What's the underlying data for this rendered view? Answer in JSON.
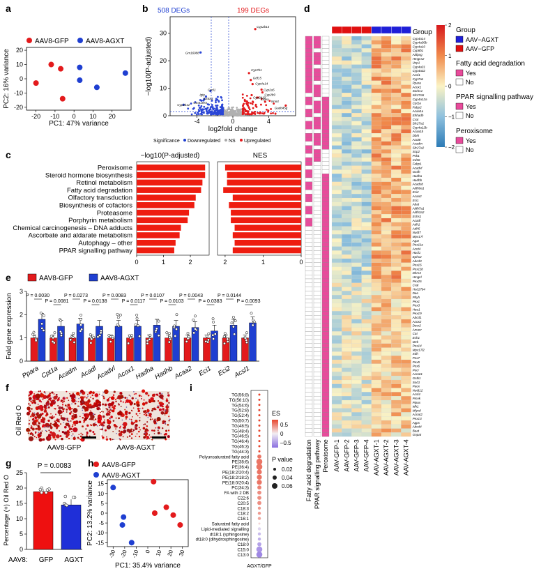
{
  "panels": {
    "a": {
      "letter": "a",
      "legend": [
        "AAV8-GFP",
        "AAV8-AGXT"
      ],
      "colors": {
        "gfp": "#e31a1c",
        "agxt": "#1f3fd1"
      },
      "xlabel": "PC1: 47% variance",
      "ylabel": "PC2: 16% variance",
      "xticks": [
        "-20",
        "-10",
        "0",
        "10",
        "20"
      ],
      "yticks": [
        "20",
        "10",
        "0",
        "-10",
        "-20"
      ],
      "chart_data": {
        "type": "scatter",
        "xlim": [
          -25,
          30
        ],
        "ylim": [
          -22,
          22
        ],
        "series": [
          {
            "name": "AAV8-GFP",
            "points": [
              [
                -12,
                10
              ],
              [
                -20,
                -3
              ],
              [
                -7,
                7
              ],
              [
                -6,
                -14
              ]
            ]
          },
          {
            "name": "AAV8-AGXT",
            "points": [
              [
                3,
                8
              ],
              [
                3,
                -1
              ],
              [
                12,
                -6
              ],
              [
                27,
                4
              ]
            ]
          }
        ]
      }
    },
    "b": {
      "letter": "b",
      "down_count": "508 DEGs",
      "up_count": "199 DEGs",
      "xlabel": "log2fold change",
      "ylabel": "−log10(P-adjusted)",
      "xticks": [
        "-4",
        "0",
        "4"
      ],
      "yticks": [
        "0",
        "10",
        "20",
        "30"
      ],
      "legend_title": "Significance",
      "legend_items": [
        "Downregulated",
        "NS",
        "Upregulated"
      ],
      "genes_up": [
        "Cyp2b13",
        "Cyp7b1",
        "Gdf15",
        "Cyp4a14",
        "Cyp2a5",
        "Cyp2b9",
        "Cyp2b10",
        "Cidea",
        "Nnmt",
        "Gadd45g"
      ],
      "genes_down": [
        "Gm16088",
        "Cxcl1",
        "Igtp",
        "Slc6a3",
        "Gm41972",
        "Cyp2b12"
      ]
    },
    "c": {
      "letter": "c",
      "left_title": "−log10(P-adjusted)",
      "right_title": "NES",
      "left_ticks": [
        "0",
        "1",
        "2"
      ],
      "right_ticks": [
        "2",
        "1",
        "0"
      ],
      "chart_data": {
        "type": "bar",
        "categories": [
          "Peroxisome",
          "Steroid hormone biosynthesis",
          "Retinol metabolism",
          "Fatty acid degradation",
          "Olfactory transduction",
          "Biosynthesis of cofactors",
          "Proteasome",
          "Porphyrin metabolism",
          "Chemical carcinogenesis – DNA adducts",
          "Ascorbate and aldarate metabolism",
          "Autophagy – other",
          "PPAR signalling pathway"
        ],
        "series": [
          {
            "name": "−log10(P-adjusted)",
            "values": [
              2.55,
              2.55,
              2.45,
              2.4,
              2.2,
              2.15,
              1.95,
              1.9,
              1.65,
              1.6,
              1.45,
              1.4
            ]
          },
          {
            "name": "NES",
            "values": [
              2.0,
              1.95,
              1.95,
              2.05,
              1.8,
              1.9,
              1.85,
              1.85,
              1.75,
              1.8,
              1.75,
              1.8
            ]
          }
        ]
      }
    },
    "e": {
      "letter": "e",
      "legend": [
        "AAV8-GFP",
        "AAV8-AGXT"
      ],
      "ylabel": "Fold gene expression",
      "yticks": [
        "0",
        "1",
        "2",
        "3"
      ],
      "chart_data": {
        "type": "bar",
        "categories": [
          "Ppara",
          "Cpt1a",
          "Acadm",
          "Acadl",
          "Acadvl",
          "Acox1",
          "Hadha",
          "Hadhb",
          "Acaa2",
          "Eci1",
          "Eci2",
          "Acsl1"
        ],
        "series": [
          {
            "name": "AAV8-GFP",
            "values": [
              1.0,
              1.0,
              1.0,
              1.0,
              1.0,
              1.0,
              1.0,
              1.0,
              1.0,
              1.0,
              1.0,
              1.0
            ]
          },
          {
            "name": "AAV8-AGXT",
            "values": [
              1.8,
              1.5,
              1.6,
              1.5,
              1.5,
              1.5,
              1.55,
              1.5,
              1.45,
              1.3,
              1.55,
              1.65
            ]
          }
        ],
        "pvalues": [
          "P = 0.0030",
          "P = 0.0081",
          "P = 0.0273",
          "P = 0.0138",
          "P = 0.0083",
          "P = 0.0117",
          "P = 0.0107",
          "P = 0.0103",
          "P = 0.0043",
          "P = 0.0383",
          "P = 0.0144",
          "P = 0.0093"
        ],
        "ylim": [
          0,
          3
        ]
      }
    },
    "f": {
      "letter": "f",
      "stain_label": "Oil Red O",
      "captions": [
        "AAV8-GFP",
        "AAV8-AGXT"
      ]
    },
    "g": {
      "letter": "g",
      "pvalue": "P = 0.0083",
      "ylabel": "Percentage (+) Oil Red O",
      "xprefix": "AAV8:",
      "yticks": [
        "0",
        "5",
        "10",
        "15",
        "20",
        "25"
      ],
      "chart_data": {
        "type": "bar",
        "categories": [
          "GFP",
          "AGXT"
        ],
        "values": [
          18.8,
          14.5
        ],
        "ylim": [
          0,
          25
        ]
      }
    },
    "h": {
      "letter": "h",
      "legend": [
        "AAV8-GFP",
        "AAV8-AGXT"
      ],
      "xlabel": "PC1: 35.4% variance",
      "ylabel": "PC2: 13.2% variance",
      "xticks": [
        "-30",
        "-20",
        "-10",
        "0",
        "10",
        "20",
        "30"
      ],
      "yticks": [
        "15",
        "10",
        "5",
        "0",
        "-5",
        "-10",
        "-15"
      ],
      "chart_data": {
        "type": "scatter",
        "xlim": [
          -35,
          35
        ],
        "ylim": [
          -17,
          17
        ],
        "series": [
          {
            "name": "AAV8-GFP",
            "points": [
              [
                5,
                16
              ],
              [
                6,
                0
              ],
              [
                16,
                3
              ],
              [
                22,
                -1
              ],
              [
                28,
                -6
              ]
            ]
          },
          {
            "name": "AAV8-AGXT",
            "points": [
              [
                -30,
                13
              ],
              [
                -21,
                -2
              ],
              [
                -22,
                -6
              ],
              [
                -14,
                -15
              ]
            ]
          }
        ]
      }
    },
    "i": {
      "letter": "i",
      "xlabel": "AGXT/GFP",
      "es_title": "ES",
      "es_ticks": [
        "0.5",
        "0",
        "–0.5"
      ],
      "p_title": "P value",
      "p_items": [
        "0.02",
        "0.04",
        "0.06"
      ],
      "rows": [
        "TG(56:8)",
        "TG(56:10)",
        "TG(54:6)",
        "TG(52:8)",
        "TG(52:4)",
        "TG(50:7)",
        "TG(48:5)",
        "TG(48:4)",
        "TG(46:5)",
        "TG(46:4)",
        "TG(46:3)",
        "TG(44:3)",
        "Polyunsaturated fatty acid",
        "PE(38:6)",
        "PE(36:4)",
        "PE(18:2/20:4)",
        "PE(18:2/18:2)",
        "PE(18:0/20:4)",
        "PC(34:3)",
        "FA with 2 DB",
        "C22:6",
        "C20:5",
        "C18:3",
        "C18:2",
        "C16:1",
        "Saturated fatty acid",
        "Lipid-mediated signalling",
        "dt18:1 (sphingosine)",
        "dt18:0 (dihydrosphingosine)",
        "C18:0",
        "C15:0",
        "C13:0"
      ],
      "es_values": [
        0.7,
        0.7,
        0.7,
        0.7,
        0.7,
        0.7,
        0.7,
        0.7,
        0.7,
        0.7,
        0.7,
        0.7,
        0.5,
        0.5,
        0.5,
        0.5,
        0.5,
        0.5,
        0.45,
        0.4,
        0.4,
        0.4,
        0.35,
        0.35,
        0.3,
        0.1,
        -0.1,
        -0.2,
        -0.25,
        -0.3,
        -0.35,
        -0.4
      ],
      "p_values": [
        0.02,
        0.02,
        0.02,
        0.02,
        0.02,
        0.02,
        0.02,
        0.02,
        0.02,
        0.02,
        0.02,
        0.02,
        0.04,
        0.06,
        0.06,
        0.05,
        0.05,
        0.05,
        0.04,
        0.04,
        0.04,
        0.04,
        0.03,
        0.03,
        0.03,
        0.02,
        0.03,
        0.03,
        0.03,
        0.04,
        0.06,
        0.06
      ]
    },
    "d": {
      "letter": "d",
      "group_label": "Group",
      "columns": [
        "AAV-GFP-1",
        "AAV-GFP-2",
        "AAV-GFP-3",
        "AAV-GFP-4",
        "AAV-AGXT-1",
        "AAV-AGXT-2",
        "AAV-AGXT-3",
        "AAV-AGXT-4"
      ],
      "ann_columns": [
        "Fatty acid degradation",
        "PPAR signalling pathway",
        "Peroxisome"
      ],
      "legend": {
        "group_title": "Group",
        "group_items": [
          "AAV−AGXT",
          "AAV−GFP"
        ],
        "fad_title": "Fatty acid degradation",
        "ppar_title": "PPAR signalling pathway",
        "perox_title": "Peroxisome",
        "yes": "Yes",
        "no": "No",
        "scale_ticks": [
          "2",
          "1",
          "0",
          "−1",
          "−2"
        ]
      },
      "genes": [
        "Cyp4a14",
        "Cyp4a30b",
        "Cyp4a10",
        "Cyp8b1",
        "Aldpxg",
        "Hmgcs2",
        "Ucp1",
        "Cyp4a31",
        "Cyp4a32",
        "Acsl1",
        "Cyp7a1",
        "Ppara",
        "Acox1",
        "Sorbs1",
        "Slc27a5",
        "Cyp4a12a",
        "Cpt1a",
        "Fabp2",
        "Acaa1a",
        "Ehhadh",
        "Crot",
        "Slc27a1",
        "Cyp4a12b",
        "Acaa1b",
        "Dbi5",
        "Acot8",
        "Acadm",
        "Slc27a2",
        "Scp2",
        "Pck1",
        "Cd36",
        "Fabp1",
        "Acadvl",
        "Gcdh",
        "Hadha",
        "Hadhb",
        "Acadsb",
        "Aldh9a1",
        "Eci2",
        "Acaa2",
        "Eci1",
        "Abat",
        "Aldh7a1",
        "Aldh3a2",
        "Echs1",
        "Acadl",
        "Adh1",
        "Adh5",
        "Nudt7",
        "Mpv17l",
        "Agxt",
        "Pex11a",
        "Acot4",
        "Hacl1",
        "Ephx2",
        "Abcd3",
        "Pex16",
        "Pex11b",
        "Dhrs4",
        "Hmgcl",
        "Pex26",
        "Crat",
        "Hsd17b4",
        "Dao",
        "Phyh",
        "Pex1",
        "Pex3",
        "Hao1",
        "Pex19",
        "Abcd1",
        "Acox2",
        "Decr2",
        "Amacr",
        "Cat",
        "Ech1",
        "Mvk",
        "Pex14",
        "Mpv17l2",
        "Xdh",
        "Pex7",
        "Pex5",
        "Pex6",
        "Pecr",
        "Acnat1",
        "Gstk1",
        "Sod1",
        "Paox",
        "Nudt12",
        "Acsl4",
        "Pmvk",
        "Pipox",
        "Idh1",
        "Mlycd",
        "Acnat2",
        "Pex13",
        "Agps",
        "Abcd4",
        "Baat",
        "Gnpat"
      ]
    }
  }
}
